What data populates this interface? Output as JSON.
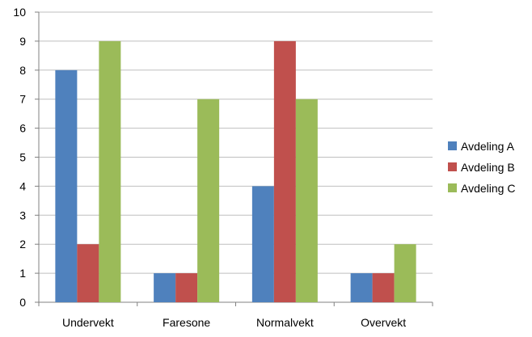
{
  "chart_data": {
    "type": "bar",
    "categories": [
      "Undervekt",
      "Faresone",
      "Normalvekt",
      "Overvekt"
    ],
    "series": [
      {
        "name": "Avdeling A",
        "color": "#4F81BD",
        "values": [
          8,
          1,
          4,
          1
        ]
      },
      {
        "name": "Avdeling B",
        "color": "#C0504D",
        "values": [
          2,
          1,
          9,
          1
        ]
      },
      {
        "name": "Avdeling C",
        "color": "#9BBB59",
        "values": [
          9,
          7,
          7,
          2
        ]
      }
    ],
    "ylim": [
      0,
      10
    ],
    "yticks": [
      0,
      1,
      2,
      3,
      4,
      5,
      6,
      7,
      8,
      9,
      10
    ],
    "grid": true,
    "legend_position": "right"
  }
}
